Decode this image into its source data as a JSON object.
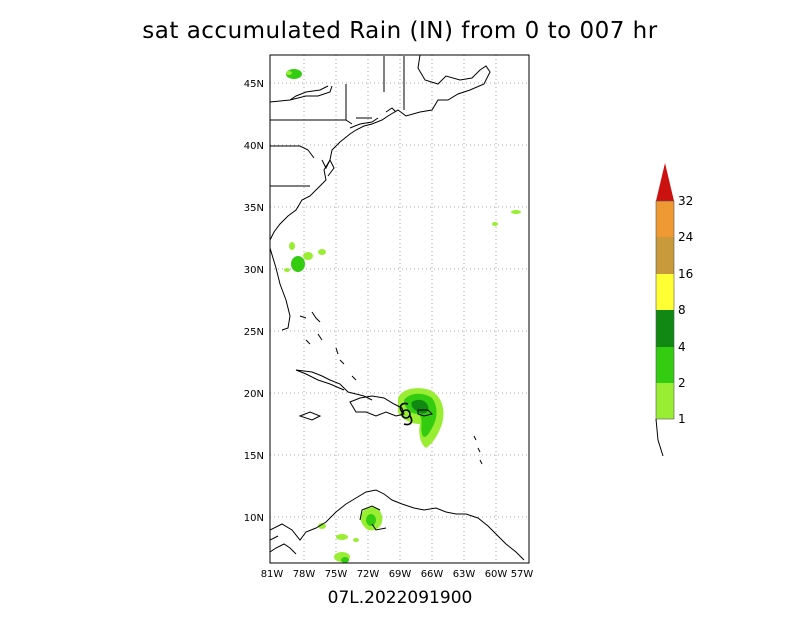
{
  "title": "sat accumulated Rain (IN) from 0 to 007 hr",
  "footer": "07L.2022091900",
  "lat_labels": [
    "45N",
    "40N",
    "35N",
    "30N",
    "25N",
    "20N",
    "15N",
    "10N"
  ],
  "lon_labels": [
    "81W",
    "78W",
    "75W",
    "72W",
    "69W",
    "66W",
    "63W",
    "60W",
    "57W"
  ],
  "colorbar": {
    "labels": [
      "1",
      "2",
      "4",
      "8",
      "16",
      "24",
      "32"
    ],
    "colors": [
      "#99ee33",
      "#33cc11",
      "#118811",
      "#ffff33",
      "#c89a3c",
      "#ee9933",
      "#cc1111"
    ]
  },
  "storm_symbol": "tropical-cyclone-icon"
}
